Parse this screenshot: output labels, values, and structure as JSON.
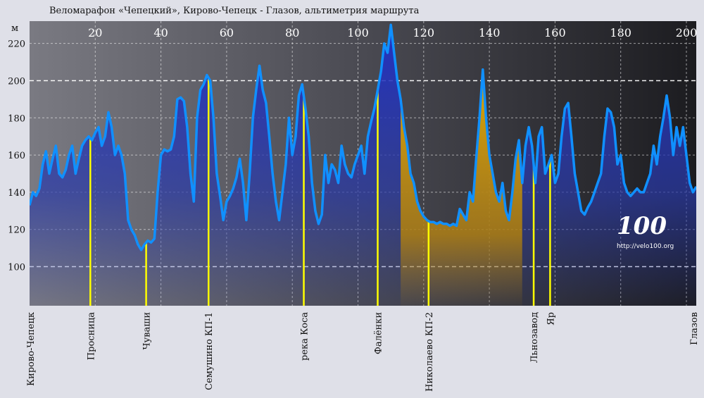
{
  "chart_data": {
    "type": "area",
    "title": "Веломарафон «Чепецкий», Кирово-Чепецк - Глазов, альтиметрия маршрута",
    "ylabel": "м",
    "xlabel": "",
    "xlim": [
      0,
      203
    ],
    "ylim": [
      79,
      232
    ],
    "x_ticks": [
      20,
      40,
      60,
      80,
      100,
      120,
      140,
      160,
      180,
      200
    ],
    "y_ticks": [
      100,
      120,
      140,
      160,
      180,
      200,
      220
    ],
    "grid": true,
    "points": [
      [
        0,
        133
      ],
      [
        1,
        140
      ],
      [
        2,
        138
      ],
      [
        3,
        142
      ],
      [
        4,
        155
      ],
      [
        5,
        162
      ],
      [
        6,
        150
      ],
      [
        7,
        158
      ],
      [
        8,
        165
      ],
      [
        9,
        150
      ],
      [
        10,
        148
      ],
      [
        11,
        152
      ],
      [
        12,
        160
      ],
      [
        13,
        165
      ],
      [
        14,
        150
      ],
      [
        15,
        158
      ],
      [
        16,
        165
      ],
      [
        17,
        168
      ],
      [
        18,
        170
      ],
      [
        19,
        168
      ],
      [
        20,
        172
      ],
      [
        21,
        175
      ],
      [
        22,
        165
      ],
      [
        23,
        170
      ],
      [
        24,
        183
      ],
      [
        25,
        175
      ],
      [
        26,
        160
      ],
      [
        27,
        165
      ],
      [
        28,
        160
      ],
      [
        29,
        150
      ],
      [
        30,
        125
      ],
      [
        31,
        120
      ],
      [
        32,
        117
      ],
      [
        33,
        112
      ],
      [
        34,
        109
      ],
      [
        35,
        112
      ],
      [
        36,
        114
      ],
      [
        37,
        113
      ],
      [
        38,
        115
      ],
      [
        39,
        140
      ],
      [
        40,
        160
      ],
      [
        41,
        163
      ],
      [
        42,
        162
      ],
      [
        43,
        163
      ],
      [
        44,
        170
      ],
      [
        45,
        190
      ],
      [
        46,
        191
      ],
      [
        47,
        189
      ],
      [
        48,
        175
      ],
      [
        49,
        150
      ],
      [
        50,
        135
      ],
      [
        51,
        180
      ],
      [
        52,
        195
      ],
      [
        53,
        198
      ],
      [
        54,
        203
      ],
      [
        55,
        200
      ],
      [
        56,
        180
      ],
      [
        57,
        150
      ],
      [
        58,
        138
      ],
      [
        59,
        125
      ],
      [
        60,
        135
      ],
      [
        61,
        138
      ],
      [
        62,
        142
      ],
      [
        63,
        148
      ],
      [
        64,
        158
      ],
      [
        65,
        145
      ],
      [
        66,
        125
      ],
      [
        67,
        150
      ],
      [
        68,
        180
      ],
      [
        69,
        195
      ],
      [
        70,
        208
      ],
      [
        71,
        195
      ],
      [
        72,
        188
      ],
      [
        73,
        170
      ],
      [
        74,
        150
      ],
      [
        75,
        135
      ],
      [
        76,
        125
      ],
      [
        77,
        140
      ],
      [
        78,
        155
      ],
      [
        79,
        180
      ],
      [
        80,
        160
      ],
      [
        81,
        170
      ],
      [
        82,
        192
      ],
      [
        83,
        198
      ],
      [
        84,
        185
      ],
      [
        85,
        170
      ],
      [
        86,
        145
      ],
      [
        87,
        130
      ],
      [
        88,
        123
      ],
      [
        89,
        128
      ],
      [
        90,
        160
      ],
      [
        91,
        145
      ],
      [
        92,
        155
      ],
      [
        93,
        152
      ],
      [
        94,
        145
      ],
      [
        95,
        165
      ],
      [
        96,
        155
      ],
      [
        97,
        150
      ],
      [
        98,
        148
      ],
      [
        99,
        155
      ],
      [
        100,
        160
      ],
      [
        101,
        165
      ],
      [
        102,
        150
      ],
      [
        103,
        170
      ],
      [
        104,
        178
      ],
      [
        105,
        185
      ],
      [
        106,
        195
      ],
      [
        107,
        205
      ],
      [
        108,
        220
      ],
      [
        109,
        215
      ],
      [
        110,
        230
      ],
      [
        111,
        215
      ],
      [
        112,
        200
      ],
      [
        113,
        190
      ],
      [
        114,
        175
      ],
      [
        115,
        165
      ],
      [
        116,
        150
      ],
      [
        117,
        145
      ],
      [
        118,
        135
      ],
      [
        119,
        130
      ],
      [
        120,
        127
      ],
      [
        121,
        125
      ],
      [
        122,
        124
      ],
      [
        123,
        124
      ],
      [
        124,
        123
      ],
      [
        125,
        124
      ],
      [
        126,
        123
      ],
      [
        127,
        123
      ],
      [
        128,
        122
      ],
      [
        129,
        123
      ],
      [
        130,
        122
      ],
      [
        131,
        131
      ],
      [
        132,
        128
      ],
      [
        133,
        125
      ],
      [
        134,
        140
      ],
      [
        135,
        135
      ],
      [
        136,
        158
      ],
      [
        137,
        180
      ],
      [
        138,
        206
      ],
      [
        139,
        180
      ],
      [
        140,
        160
      ],
      [
        141,
        150
      ],
      [
        142,
        140
      ],
      [
        143,
        135
      ],
      [
        144,
        145
      ],
      [
        145,
        130
      ],
      [
        146,
        125
      ],
      [
        147,
        140
      ],
      [
        148,
        158
      ],
      [
        149,
        168
      ],
      [
        150,
        145
      ],
      [
        151,
        165
      ],
      [
        152,
        175
      ],
      [
        153,
        165
      ],
      [
        154,
        145
      ],
      [
        155,
        170
      ],
      [
        156,
        175
      ],
      [
        157,
        150
      ],
      [
        158,
        155
      ],
      [
        159,
        160
      ],
      [
        160,
        145
      ],
      [
        161,
        150
      ],
      [
        162,
        170
      ],
      [
        163,
        185
      ],
      [
        164,
        188
      ],
      [
        165,
        170
      ],
      [
        166,
        150
      ],
      [
        167,
        140
      ],
      [
        168,
        130
      ],
      [
        169,
        128
      ],
      [
        170,
        132
      ],
      [
        171,
        135
      ],
      [
        172,
        140
      ],
      [
        173,
        145
      ],
      [
        174,
        150
      ],
      [
        175,
        170
      ],
      [
        176,
        185
      ],
      [
        177,
        183
      ],
      [
        178,
        175
      ],
      [
        179,
        155
      ],
      [
        180,
        160
      ],
      [
        181,
        145
      ],
      [
        182,
        140
      ],
      [
        183,
        138
      ],
      [
        184,
        140
      ],
      [
        185,
        142
      ],
      [
        186,
        140
      ],
      [
        187,
        140
      ],
      [
        188,
        145
      ],
      [
        189,
        150
      ],
      [
        190,
        165
      ],
      [
        191,
        155
      ],
      [
        192,
        170
      ],
      [
        193,
        180
      ],
      [
        194,
        192
      ],
      [
        195,
        180
      ],
      [
        196,
        160
      ],
      [
        197,
        175
      ],
      [
        198,
        165
      ],
      [
        199,
        175
      ],
      [
        200,
        160
      ],
      [
        201,
        145
      ],
      [
        202,
        140
      ],
      [
        203,
        143
      ]
    ],
    "highlight": {
      "from": 113,
      "to": 150,
      "color": "#d9a000"
    },
    "checkpoints": [
      {
        "x": 0,
        "label": "Кирово-Чепецк"
      },
      {
        "x": 18.5,
        "label": "Просница"
      },
      {
        "x": 35.5,
        "label": "Чуваши"
      },
      {
        "x": 54.5,
        "label": "Семушино КП-1"
      },
      {
        "x": 83.5,
        "label": "река Коса"
      },
      {
        "x": 106,
        "label": "Фалёнки"
      },
      {
        "x": 121.5,
        "label": "Николаево КП-2"
      },
      {
        "x": 153.5,
        "label": "Льнозавод"
      },
      {
        "x": 158.5,
        "label": "Яр"
      },
      {
        "x": 203,
        "label": "Глазов"
      }
    ],
    "colors": {
      "line": "#1090ff",
      "marker": "#ffff00",
      "fill": "#2030c0",
      "grid": "#ffffff"
    }
  },
  "logo": {
    "text": "100",
    "url": "http://velo100.org"
  }
}
